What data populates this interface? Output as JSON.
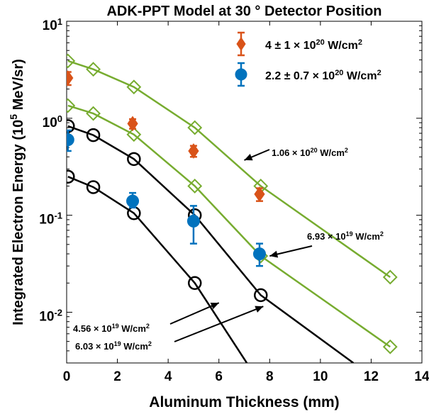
{
  "chart_data": {
    "type": "scatter",
    "title": "ADK-PPT Model at 30 ° Detector Position",
    "xlabel": "Aluminum Thickness (mm)",
    "ylabel": "Integrated Electron Energy (10^5 MeV/sr)",
    "xlim": [
      0,
      14
    ],
    "ylim": [
      0.003,
      10
    ],
    "yscale": "log",
    "x_ticks": [
      "0",
      "2",
      "4",
      "6",
      "8",
      "10",
      "12",
      "14"
    ],
    "y_ticks": [
      "10^-2",
      "10^-1",
      "10^0",
      "10^1"
    ],
    "legend_position": "top-right",
    "colors": {
      "green": "#77ac30",
      "black": "#000000",
      "red": "#d95319",
      "blue": "#0072bd"
    },
    "experimental": [
      {
        "name": "4 ± 1 × 10^20 W/cm^2",
        "marker": "diamond",
        "color": "#d95319",
        "points": [
          {
            "x": 0.05,
            "y": 2.6,
            "ylo": 2.2,
            "yhi": 3.0
          },
          {
            "x": 2.6,
            "y": 0.88,
            "ylo": 0.78,
            "yhi": 0.98
          },
          {
            "x": 5.0,
            "y": 0.46,
            "ylo": 0.4,
            "yhi": 0.52
          },
          {
            "x": 7.6,
            "y": 0.165,
            "ylo": 0.14,
            "yhi": 0.19
          }
        ]
      },
      {
        "name": "2.2 ± 0.7 × 10^20 W/cm^2",
        "marker": "circle",
        "color": "#0072bd",
        "points": [
          {
            "x": 0.05,
            "y": 0.6,
            "ylo": 0.46,
            "yhi": 0.75
          },
          {
            "x": 2.6,
            "y": 0.14,
            "ylo": 0.12,
            "yhi": 0.17
          },
          {
            "x": 5.0,
            "y": 0.087,
            "ylo": 0.051,
            "yhi": 0.125
          },
          {
            "x": 7.6,
            "y": 0.04,
            "ylo": 0.03,
            "yhi": 0.051
          }
        ]
      }
    ],
    "model": [
      {
        "label": "1.06 × 10^20 W/cm^2",
        "color": "#77ac30",
        "marker": "diamond",
        "points": [
          [
            0.05,
            3.9
          ],
          [
            1.05,
            3.2
          ],
          [
            2.65,
            2.1
          ],
          [
            5.05,
            0.8
          ],
          [
            7.65,
            0.2
          ],
          [
            12.75,
            0.023
          ]
        ]
      },
      {
        "label": "6.93 × 10^19 W/cm^2",
        "color": "#77ac30",
        "marker": "diamond",
        "points": [
          [
            0.05,
            1.35
          ],
          [
            1.05,
            1.12
          ],
          [
            2.65,
            0.68
          ],
          [
            5.05,
            0.2
          ],
          [
            7.65,
            0.038
          ],
          [
            12.75,
            0.0044
          ]
        ]
      },
      {
        "label": "6.03 × 10^19 W/cm^2",
        "color": "#000000",
        "marker": "circle",
        "points": [
          [
            0.05,
            0.83
          ],
          [
            1.05,
            0.67
          ],
          [
            2.65,
            0.38
          ],
          [
            5.05,
            0.1
          ],
          [
            7.65,
            0.015
          ],
          [
            11.3,
            0.003
          ]
        ]
      },
      {
        "label": "4.56 × 10^19 W/cm^2",
        "color": "#000000",
        "marker": "circle",
        "points": [
          [
            0.05,
            0.25
          ],
          [
            1.05,
            0.195
          ],
          [
            2.65,
            0.105
          ],
          [
            5.05,
            0.02
          ],
          [
            7.1,
            0.003
          ]
        ]
      }
    ],
    "annotations": [
      {
        "series": "1.06 × 10^20 W/cm^2",
        "point_to": [
          7.0,
          0.37
        ]
      },
      {
        "series": "6.93 × 10^19 W/cm^2",
        "point_to": [
          8.0,
          0.038
        ]
      },
      {
        "series": "4.56 × 10^19 W/cm^2",
        "point_to": [
          6.0,
          0.0125
        ]
      },
      {
        "series": "6.03 × 10^19 W/cm^2",
        "point_to": [
          7.75,
          0.0115
        ]
      }
    ]
  }
}
